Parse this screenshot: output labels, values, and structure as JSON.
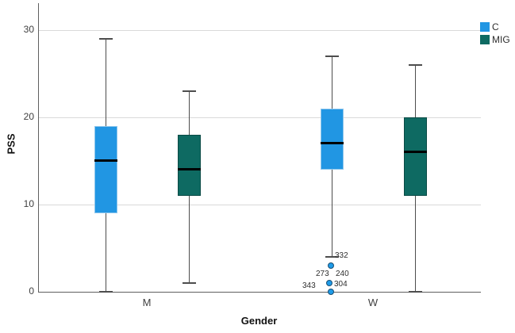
{
  "chart_data": {
    "type": "boxplot",
    "title": "",
    "xlabel": "Gender",
    "ylabel": "PSS",
    "ylim": [
      0,
      33
    ],
    "yticks": [
      0,
      10,
      20,
      30
    ],
    "categories": [
      "M",
      "W"
    ],
    "grid": "horizontal",
    "legend_position": "top-right",
    "series": [
      {
        "name": "C",
        "color": "#2196e3",
        "border_color": "#8ec6ec",
        "boxes": [
          {
            "category": "M",
            "whisker_low": 0,
            "q1": 9,
            "median": 15,
            "q3": 19,
            "whisker_high": 29
          },
          {
            "category": "W",
            "whisker_low": 4,
            "q1": 14,
            "median": 17,
            "q3": 21,
            "whisker_high": 27
          }
        ]
      },
      {
        "name": "MIG",
        "color": "#0e6a62",
        "border_color": "#0a4a45",
        "boxes": [
          {
            "category": "M",
            "whisker_low": 1,
            "q1": 11,
            "median": 14,
            "q3": 18,
            "whisker_high": 23
          },
          {
            "category": "W",
            "whisker_low": 0,
            "q1": 11,
            "median": 16,
            "q3": 20,
            "whisker_high": 26
          }
        ]
      }
    ],
    "outliers": {
      "series": "C",
      "category": "W",
      "dot_color": "#1e9be8",
      "dot_border_color": "#1a4e73",
      "points": [
        {
          "value": 3,
          "dx": -1
        },
        {
          "value": 1,
          "dx": -3
        },
        {
          "value": 0,
          "dx": -1
        }
      ],
      "case_labels": [
        {
          "text": "332",
          "x": 373,
          "y": 313
        },
        {
          "text": "240",
          "x": 374,
          "y": 336
        },
        {
          "text": "273",
          "x": 349,
          "y": 336
        },
        {
          "text": "304",
          "x": 372,
          "y": 349
        },
        {
          "text": "343",
          "x": 332,
          "y": 351
        }
      ]
    },
    "colors": {
      "gridline": "#d9d9d9",
      "axis_line": "#5f5f5f",
      "whisker": "#4d4d4d",
      "median": "#000000",
      "tick_text": "#3f3f3f"
    }
  }
}
